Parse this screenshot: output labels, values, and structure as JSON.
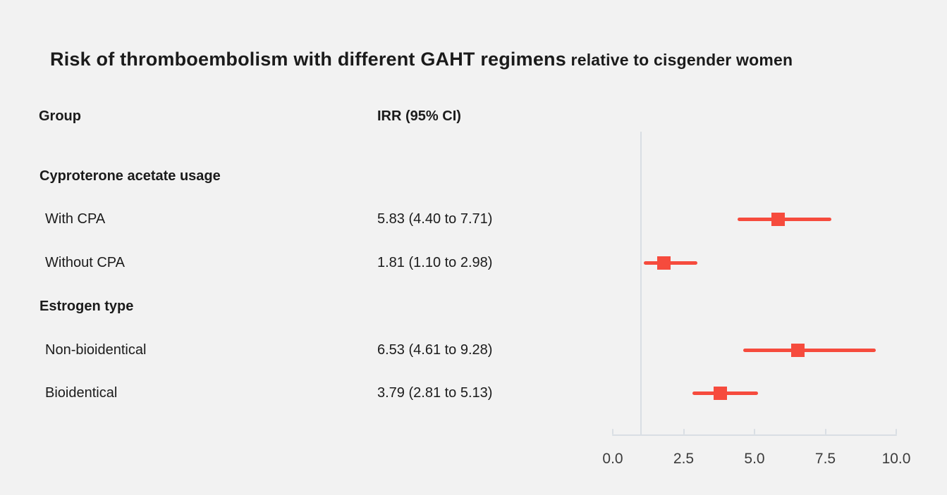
{
  "title": {
    "main": "Risk of thromboembolism with different GAHT regimens",
    "suffix": " relative to cisgender women"
  },
  "columns": {
    "group": "Group",
    "irr": "IRR (95% CI)"
  },
  "sections": [
    {
      "heading": "Cyproterone acetate usage",
      "rows": [
        {
          "label": "With CPA",
          "irr_text": "5.83 (4.40 to 7.71)"
        },
        {
          "label": "Without CPA",
          "irr_text": "1.81 (1.10 to 2.98)"
        }
      ]
    },
    {
      "heading": "Estrogen type",
      "rows": [
        {
          "label": "Non-bioidentical",
          "irr_text": "6.53 (4.61 to 9.28)"
        },
        {
          "label": "Bioidentical",
          "irr_text": "3.79 (2.81 to 5.13)"
        }
      ]
    }
  ],
  "colors": {
    "background": "#f2f2f2",
    "text": "#1b1b1b",
    "marker": "#f64b3d",
    "axis_line": "#d9dee4",
    "tick_text": "#3c3c3c"
  },
  "chart_data": {
    "type": "scatter",
    "subtype": "forest-plot",
    "title": "Risk of thromboembolism with different GAHT regimens relative to cisgender women",
    "xlabel": "",
    "ylabel": "",
    "xlim": [
      0,
      10
    ],
    "x_ticks": [
      0.0,
      2.5,
      5.0,
      7.5,
      10.0
    ],
    "x_tick_labels": [
      "0.0",
      "2.5",
      "5.0",
      "7.5",
      "10.0"
    ],
    "reference_line_x": 1.0,
    "legend": "none",
    "grid": false,
    "groups": [
      {
        "name": "Cyproterone acetate usage",
        "points": [
          {
            "label": "With CPA",
            "irr": 5.83,
            "ci": [
              4.4,
              7.71
            ]
          },
          {
            "label": "Without CPA",
            "irr": 1.81,
            "ci": [
              1.1,
              2.98
            ]
          }
        ]
      },
      {
        "name": "Estrogen type",
        "points": [
          {
            "label": "Non-bioidentical",
            "irr": 6.53,
            "ci": [
              4.61,
              9.28
            ]
          },
          {
            "label": "Bioidentical",
            "irr": 3.79,
            "ci": [
              2.81,
              5.13
            ]
          }
        ]
      }
    ]
  }
}
